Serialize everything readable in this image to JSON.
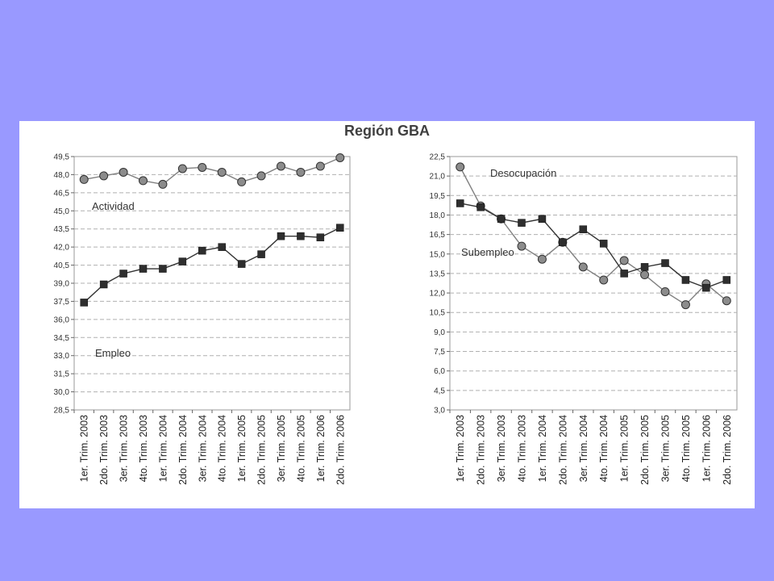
{
  "title": "Región GBA",
  "chart_data": [
    {
      "type": "line",
      "categories": [
        "1er. Trim. 2003",
        "2do. Trim. 2003",
        "3er. Trim. 2003",
        "4to. Trim. 2003",
        "1er. Trim. 2004",
        "2do. Trim. 2004",
        "3er. Trim. 2004",
        "4to. Trim. 2004",
        "1er. Trim. 2005",
        "2do. Trim. 2005",
        "3er. Trim. 2005",
        "4to. Trim. 2005",
        "1er. Trim. 2006",
        "2do. Trim. 2006"
      ],
      "ylim": [
        28.5,
        49.5
      ],
      "yticks": [
        "28,5",
        "30,0",
        "31,5",
        "33,0",
        "34,5",
        "36,0",
        "37,5",
        "39,0",
        "40,5",
        "42,0",
        "43,5",
        "45,0",
        "46,5",
        "48,0",
        "49,5"
      ],
      "grid": true,
      "series": [
        {
          "name": "Actividad",
          "marker": "circle",
          "color": "#808080",
          "values": [
            47.6,
            47.9,
            48.2,
            47.5,
            47.2,
            48.5,
            48.6,
            48.2,
            47.4,
            47.9,
            48.7,
            48.2,
            48.7,
            49.4
          ]
        },
        {
          "name": "Empleo",
          "marker": "square",
          "color": "#333333",
          "values": [
            37.4,
            38.9,
            39.8,
            40.2,
            40.2,
            40.8,
            41.7,
            42.0,
            40.6,
            41.4,
            42.9,
            42.9,
            42.8,
            43.6
          ]
        }
      ]
    },
    {
      "type": "line",
      "categories": [
        "1er. Trim. 2003",
        "2do. Trim. 2003",
        "3er. Trim. 2003",
        "4to. Trim. 2003",
        "1er. Trim. 2004",
        "2do. Trim. 2004",
        "3er. Trim. 2004",
        "4to. Trim. 2004",
        "1er. Trim. 2005",
        "2do. Trim. 2005",
        "3er. Trim. 2005",
        "4to. Trim. 2005",
        "1er. Trim. 2006",
        "2do. Trim. 2006"
      ],
      "ylim": [
        3.0,
        22.5
      ],
      "yticks": [
        "3,0",
        "4,5",
        "6,0",
        "7,5",
        "9,0",
        "10,5",
        "12,0",
        "13,5",
        "15,0",
        "16,5",
        "18,0",
        "19,5",
        "21,0",
        "22,5"
      ],
      "grid": true,
      "series": [
        {
          "name": "Desocupación",
          "marker": "circle",
          "color": "#808080",
          "values": [
            21.7,
            18.7,
            17.7,
            15.6,
            14.6,
            15.9,
            14.0,
            13.0,
            14.5,
            13.4,
            12.1,
            11.1,
            12.7,
            11.4
          ]
        },
        {
          "name": "Subempleo",
          "marker": "square",
          "color": "#333333",
          "values": [
            18.9,
            18.6,
            17.7,
            17.4,
            17.7,
            15.9,
            16.9,
            15.8,
            13.5,
            14.0,
            14.3,
            13.0,
            12.4,
            13.0
          ]
        }
      ]
    }
  ]
}
